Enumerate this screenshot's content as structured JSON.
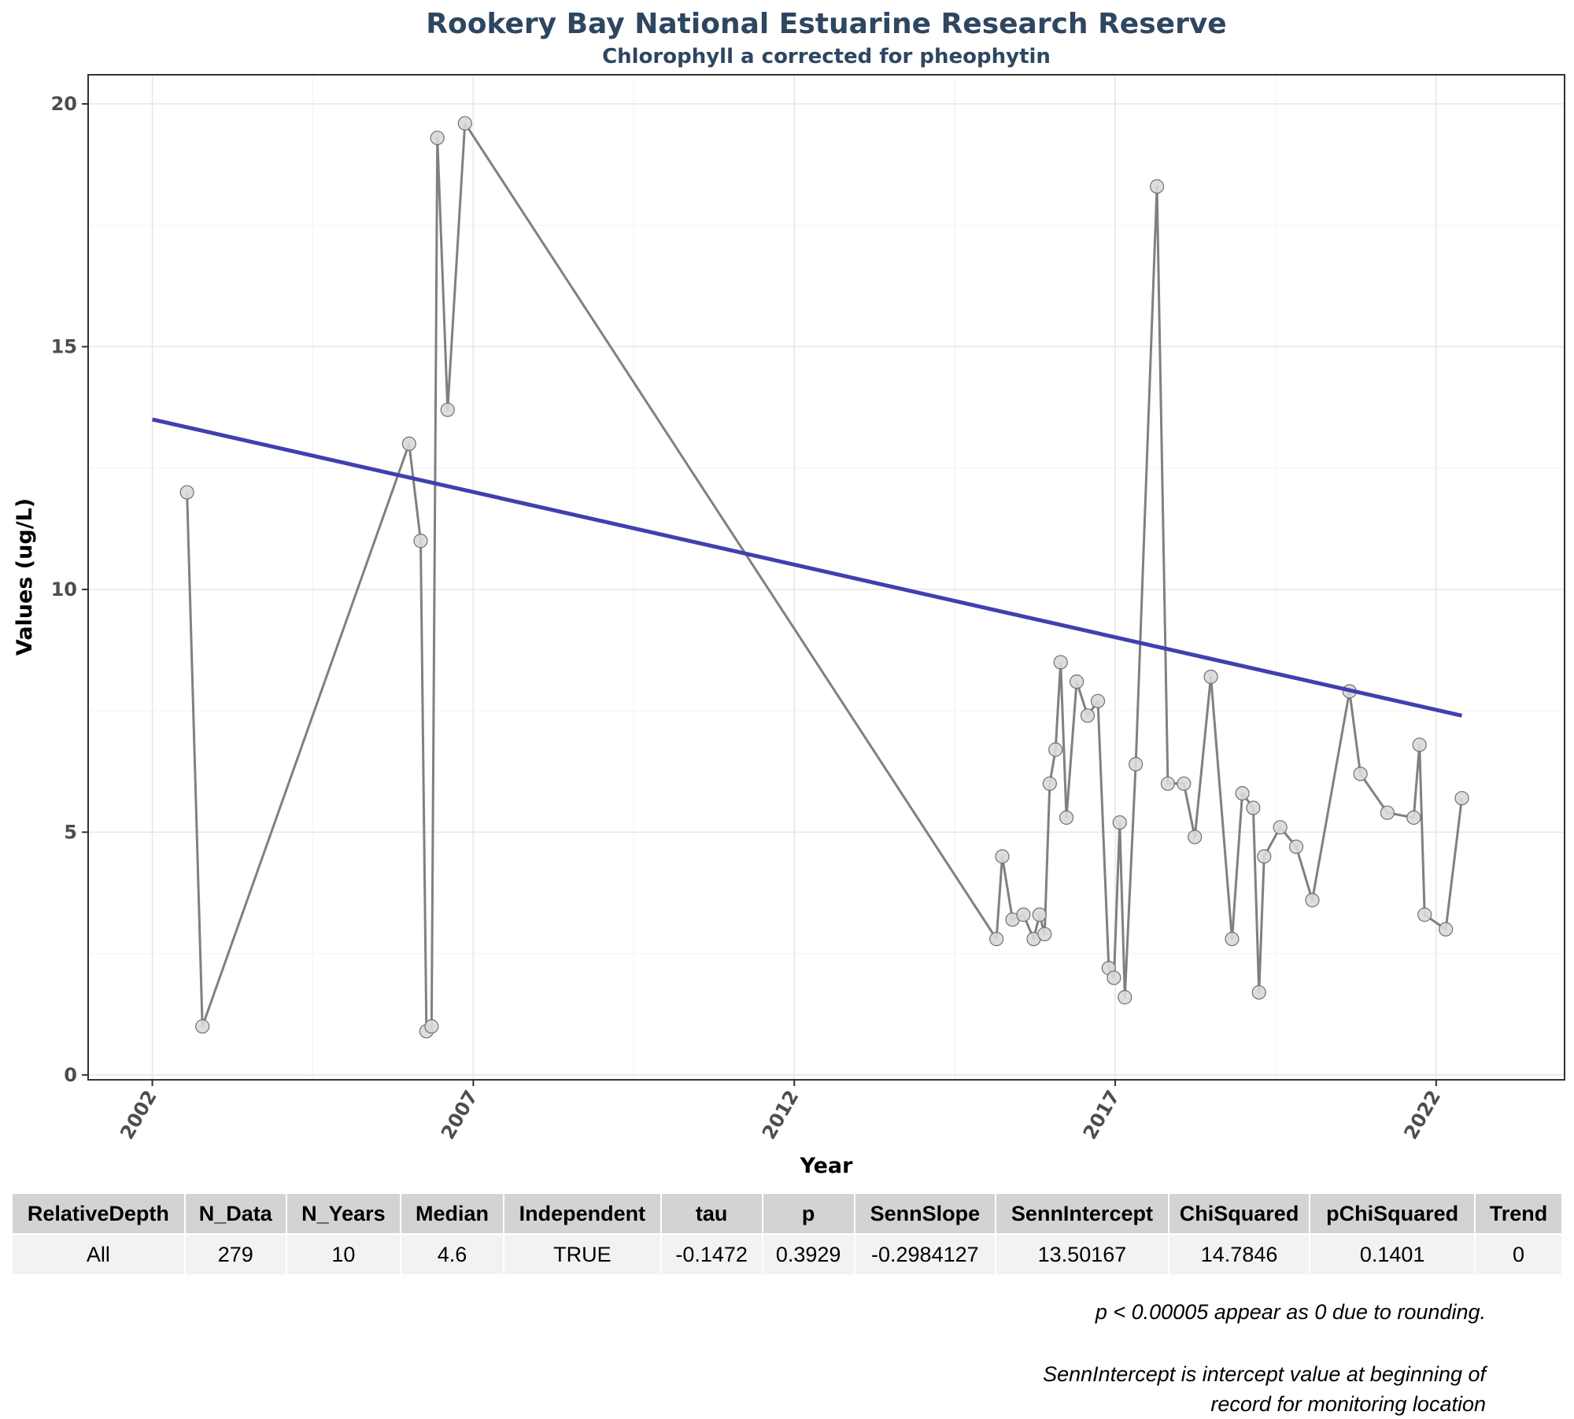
{
  "chart_data": {
    "type": "line",
    "title": "Rookery Bay National Estuarine Research Reserve",
    "subtitle": "Chlorophyll a corrected for pheophytin",
    "xlabel": "Year",
    "ylabel": "Values (ug/L)",
    "xlim": [
      2001.0,
      2024.0
    ],
    "ylim": [
      -0.1,
      20.6
    ],
    "x_ticks": [
      2002,
      2007,
      2012,
      2017,
      2022
    ],
    "y_ticks": [
      0,
      5,
      10,
      15,
      20
    ],
    "grid": true,
    "colors": {
      "data_line": "#808080",
      "point_fill": "#d9d9d9",
      "trend_line": "#4040b0"
    },
    "series": [
      {
        "x": [
          2002.54,
          2002.78,
          2006.0,
          2006.18,
          2006.27,
          2006.35,
          2006.44,
          2006.6,
          2006.87,
          2015.15,
          2015.24,
          2015.4,
          2015.57,
          2015.73,
          2015.82,
          2015.9,
          2015.98,
          2016.07,
          2016.15,
          2016.24,
          2016.4,
          2016.57,
          2016.73,
          2016.9,
          2016.98,
          2017.07,
          2017.15,
          2017.32,
          2017.65,
          2017.82,
          2018.07,
          2018.24,
          2018.49,
          2018.82,
          2018.98,
          2019.15,
          2019.24,
          2019.32,
          2019.57,
          2019.82,
          2020.07,
          2020.65,
          2020.82,
          2021.24,
          2021.65,
          2021.74,
          2021.82,
          2022.15,
          2022.4
        ],
        "y": [
          12.0,
          1.0,
          13.0,
          11.0,
          0.9,
          1.0,
          19.3,
          13.7,
          19.6,
          2.8,
          4.5,
          3.2,
          3.3,
          2.8,
          3.3,
          2.9,
          6.0,
          6.7,
          8.5,
          5.3,
          8.1,
          7.4,
          7.7,
          2.2,
          2.0,
          5.2,
          1.6,
          6.4,
          18.3,
          6.0,
          6.0,
          4.9,
          8.2,
          2.8,
          5.8,
          5.5,
          1.7,
          4.5,
          5.1,
          4.7,
          3.6,
          7.9,
          6.2,
          5.4,
          5.3,
          6.8,
          3.3,
          3.0,
          5.7
        ]
      }
    ],
    "trend_line": {
      "x": [
        2002.0,
        2022.4
      ],
      "y": [
        13.50167,
        7.4
      ]
    }
  },
  "table": {
    "headers": [
      "RelativeDepth",
      "N_Data",
      "N_Years",
      "Median",
      "Independent",
      "tau",
      "p",
      "SennSlope",
      "SennIntercept",
      "ChiSquared",
      "pChiSquared",
      "Trend"
    ],
    "rows": [
      [
        "All",
        "279",
        "10",
        "4.6",
        "TRUE",
        "-0.1472",
        "0.3929",
        "-0.2984127",
        "13.50167",
        "14.7846",
        "0.1401",
        "0"
      ]
    ]
  },
  "footnotes": {
    "note1": "p < 0.00005 appear as 0 due to rounding.",
    "note2_line1": "SennIntercept is intercept value at beginning of",
    "note2_line2": "record for monitoring location"
  }
}
